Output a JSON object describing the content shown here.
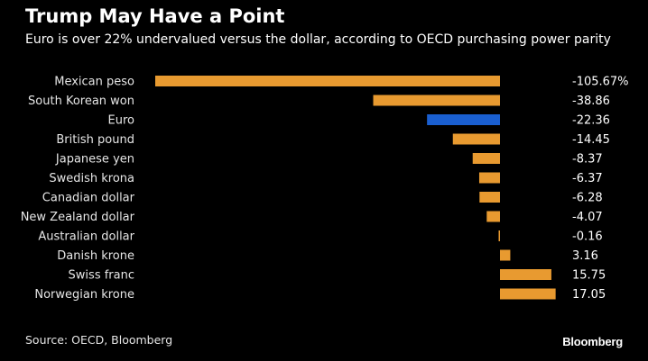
{
  "header": {
    "title": "Trump May Have a Point",
    "subtitle": "Euro is over 22% undervalued versus the dollar, according to OECD purchasing power parity"
  },
  "footer": {
    "source": "Source: OECD, Bloomberg",
    "logo": "Bloomberg"
  },
  "colors": {
    "background": "#000000",
    "bar_default": "#e89a30",
    "bar_highlight": "#1a5fd0",
    "text": "#ffffff"
  },
  "chart_data": {
    "type": "bar",
    "orientation": "horizontal",
    "title": "Trump May Have a Point",
    "subtitle": "Euro is over 22% undervalued versus the dollar, according to OECD purchasing power parity",
    "xlabel": "",
    "ylabel": "",
    "xlim": [
      -105.67,
      17.05
    ],
    "grid": false,
    "legend": "none",
    "highlight": "Euro",
    "categories": [
      "Mexican peso",
      "South Korean won",
      "Euro",
      "British pound",
      "Japanese yen",
      "Swedish krona",
      "Canadian dollar",
      "New Zealand dollar",
      "Australian dollar",
      "Danish krone",
      "Swiss franc",
      "Norwegian krone"
    ],
    "values": [
      -105.67,
      -38.86,
      -22.36,
      -14.45,
      -8.37,
      -6.37,
      -6.28,
      -4.07,
      -0.16,
      3.16,
      15.75,
      17.05
    ],
    "value_labels": [
      "-105.67%",
      "-38.86",
      "-22.36",
      "-14.45",
      "-8.37",
      "-6.37",
      "-6.28",
      "-4.07",
      "-0.16",
      "3.16",
      "15.75",
      "17.05"
    ]
  }
}
